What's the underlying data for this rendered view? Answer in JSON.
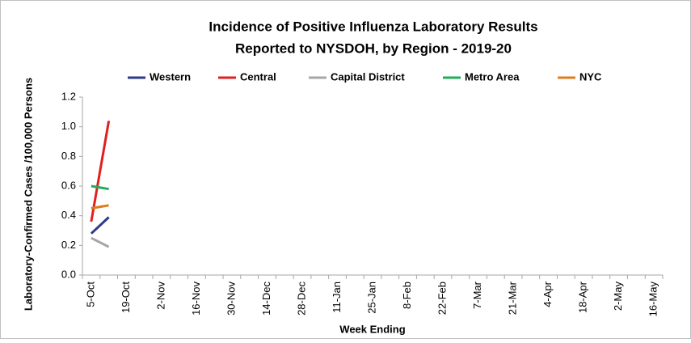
{
  "chart_data": {
    "type": "line",
    "title": [
      "Incidence of Positive Influenza Laboratory Results",
      "Reported to NYSDOH, by Region - 2019-20"
    ],
    "x_label": "Week Ending",
    "y_label": "Laboratory-Confirmed Cases /100,000 Persons",
    "categories": [
      "5-Oct",
      null,
      "19-Oct",
      null,
      "2-Nov",
      null,
      "16-Nov",
      null,
      "30-Nov",
      null,
      "14-Dec",
      null,
      "28-Dec",
      null,
      "11-Jan",
      null,
      "25-Jan",
      null,
      "8-Feb",
      null,
      "22-Feb",
      null,
      "7-Mar",
      null,
      "21-Mar",
      null,
      "4-Apr",
      null,
      "18-Apr",
      null,
      "2-May",
      null,
      "16-May"
    ],
    "series": [
      {
        "name": "Western",
        "color": "#2e3a8c",
        "values": [
          0.28,
          0.39,
          null,
          null,
          null,
          null,
          null,
          null,
          null,
          null,
          null,
          null,
          null,
          null,
          null,
          null,
          null,
          null,
          null,
          null,
          null,
          null,
          null,
          null,
          null,
          null,
          null,
          null,
          null,
          null,
          null,
          null,
          null
        ]
      },
      {
        "name": "Central",
        "color": "#e02020",
        "values": [
          0.36,
          1.04,
          null,
          null,
          null,
          null,
          null,
          null,
          null,
          null,
          null,
          null,
          null,
          null,
          null,
          null,
          null,
          null,
          null,
          null,
          null,
          null,
          null,
          null,
          null,
          null,
          null,
          null,
          null,
          null,
          null,
          null,
          null
        ]
      },
      {
        "name": "Capital District",
        "color": "#a6a6a6",
        "values": [
          0.25,
          0.19,
          null,
          null,
          null,
          null,
          null,
          null,
          null,
          null,
          null,
          null,
          null,
          null,
          null,
          null,
          null,
          null,
          null,
          null,
          null,
          null,
          null,
          null,
          null,
          null,
          null,
          null,
          null,
          null,
          null,
          null,
          null
        ]
      },
      {
        "name": "Metro Area",
        "color": "#1fae5a",
        "values": [
          0.6,
          0.58,
          null,
          null,
          null,
          null,
          null,
          null,
          null,
          null,
          null,
          null,
          null,
          null,
          null,
          null,
          null,
          null,
          null,
          null,
          null,
          null,
          null,
          null,
          null,
          null,
          null,
          null,
          null,
          null,
          null,
          null,
          null
        ]
      },
      {
        "name": "NYC",
        "color": "#e07b20",
        "values": [
          0.45,
          0.47,
          null,
          null,
          null,
          null,
          null,
          null,
          null,
          null,
          null,
          null,
          null,
          null,
          null,
          null,
          null,
          null,
          null,
          null,
          null,
          null,
          null,
          null,
          null,
          null,
          null,
          null,
          null,
          null,
          null,
          null,
          null
        ]
      }
    ],
    "ylim": [
      0,
      1.2
    ],
    "yticks": [
      {
        "value": 0,
        "label": "0.0"
      },
      0.2,
      0.4,
      0.6,
      0.8,
      {
        "value": 1,
        "label": "1.0"
      },
      1.2
    ],
    "legend": "top",
    "grid": false
  }
}
